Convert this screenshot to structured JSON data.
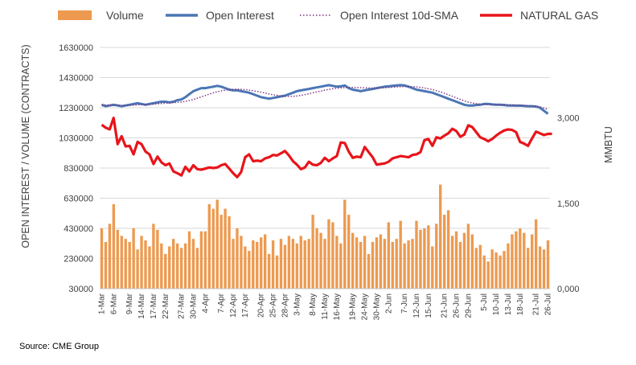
{
  "chart_data": {
    "type": "bar+line",
    "legend": {
      "placement": "top",
      "items": [
        {
          "label": "Volume",
          "kind": "bar",
          "color": "#ED9A50"
        },
        {
          "label": "Open Interest",
          "kind": "line",
          "color": "#4A76B5"
        },
        {
          "label": "Open Interest 10d-SMA",
          "kind": "dotted-line",
          "color": "#7B2F7E"
        },
        {
          "label": "NATURAL GAS",
          "kind": "line",
          "color": "#E8141A"
        }
      ]
    },
    "ylabel_left": "OPEN INTEREST / VOLUME (CONTRACTS)",
    "ylabel_right": "MMBTU",
    "yticks_left": [
      "1630000",
      "1430000",
      "1230000",
      "1030000",
      "830000",
      "630000",
      "430000",
      "230000",
      "30000"
    ],
    "ylim_left": [
      30000,
      1630000
    ],
    "yticks_right": [
      "3,000",
      "1,500",
      "0,000"
    ],
    "ylim_right": [
      0,
      4240
    ],
    "xtick_labels": [
      "1-Mar",
      "6-Mar",
      "9-Mar",
      "14-Mar",
      "17-Mar",
      "22-Mar",
      "27-Mar",
      "30-Mar",
      "4-Apr",
      "7-Apr",
      "12-Apr",
      "17-Apr",
      "20-Apr",
      "25-Apr",
      "28-Apr",
      "3-May",
      "8-May",
      "11-May",
      "16-May",
      "19-May",
      "24-May",
      "30-May",
      "2-Jun",
      "7-Jun",
      "12-Jun",
      "15-Jun",
      "21-Jun",
      "26-Jun",
      "29-Jun",
      "5-Jul",
      "10-Jul",
      "13-Jul",
      "18-Jul",
      "21-Jul",
      "26-Jul"
    ],
    "series": [
      {
        "name": "Volume",
        "values": [
          430000,
          340000,
          460000,
          590000,
          420000,
          380000,
          360000,
          340000,
          430000,
          290000,
          380000,
          350000,
          310000,
          460000,
          420000,
          330000,
          260000,
          310000,
          360000,
          330000,
          300000,
          330000,
          410000,
          360000,
          300000,
          410000,
          410000,
          590000,
          560000,
          620000,
          520000,
          560000,
          510000,
          360000,
          430000,
          380000,
          310000,
          280000,
          350000,
          340000,
          370000,
          390000,
          260000,
          350000,
          250000,
          360000,
          320000,
          380000,
          360000,
          330000,
          380000,
          350000,
          360000,
          520000,
          430000,
          400000,
          360000,
          490000,
          470000,
          380000,
          330000,
          620000,
          520000,
          400000,
          370000,
          340000,
          380000,
          260000,
          340000,
          370000,
          390000,
          360000,
          470000,
          340000,
          360000,
          480000,
          330000,
          350000,
          360000,
          480000,
          420000,
          430000,
          450000,
          310000,
          460000,
          720000,
          520000,
          550000,
          380000,
          410000,
          340000,
          400000,
          460000,
          390000,
          300000,
          320000,
          250000,
          210000,
          290000,
          270000,
          250000,
          280000,
          330000,
          390000,
          410000,
          430000,
          400000,
          300000,
          390000,
          490000,
          310000,
          290000,
          350000
        ]
      },
      {
        "name": "Open Interest",
        "values": [
          1250000,
          1240000,
          1245000,
          1250000,
          1245000,
          1240000,
          1245000,
          1250000,
          1255000,
          1260000,
          1255000,
          1250000,
          1255000,
          1260000,
          1265000,
          1270000,
          1270000,
          1265000,
          1270000,
          1280000,
          1285000,
          1300000,
          1320000,
          1340000,
          1350000,
          1360000,
          1360000,
          1365000,
          1370000,
          1375000,
          1370000,
          1360000,
          1350000,
          1345000,
          1345000,
          1340000,
          1335000,
          1330000,
          1320000,
          1310000,
          1300000,
          1295000,
          1290000,
          1295000,
          1300000,
          1305000,
          1310000,
          1320000,
          1330000,
          1340000,
          1345000,
          1350000,
          1355000,
          1360000,
          1365000,
          1370000,
          1375000,
          1380000,
          1375000,
          1370000,
          1372000,
          1378000,
          1360000,
          1350000,
          1345000,
          1340000,
          1345000,
          1350000,
          1355000,
          1360000,
          1365000,
          1370000,
          1372000,
          1375000,
          1378000,
          1380000,
          1378000,
          1370000,
          1360000,
          1350000,
          1345000,
          1340000,
          1335000,
          1330000,
          1320000,
          1310000,
          1300000,
          1290000,
          1280000,
          1270000,
          1260000,
          1250000,
          1245000,
          1245000,
          1248000,
          1250000,
          1255000,
          1255000,
          1252000,
          1250000,
          1250000,
          1248000,
          1245000,
          1245000,
          1244000,
          1244000,
          1242000,
          1240000,
          1240000,
          1238000,
          1230000,
          1210000,
          1190000
        ]
      },
      {
        "name": "Open Interest 10d-SMA",
        "values": [
          1250000,
          1248000,
          1246000,
          1246000,
          1246000,
          1245000,
          1245000,
          1246000,
          1247000,
          1249000,
          1250000,
          1251000,
          1252000,
          1254000,
          1256000,
          1258000,
          1260000,
          1262000,
          1264000,
          1266000,
          1268000,
          1272000,
          1278000,
          1285000,
          1293000,
          1302000,
          1311000,
          1320000,
          1328000,
          1336000,
          1342000,
          1347000,
          1350000,
          1352000,
          1353000,
          1352000,
          1350000,
          1347000,
          1343000,
          1338000,
          1333000,
          1327000,
          1321000,
          1316000,
          1312000,
          1308000,
          1306000,
          1305000,
          1306000,
          1308000,
          1312000,
          1317000,
          1323000,
          1329000,
          1335000,
          1341000,
          1347000,
          1352000,
          1356000,
          1359000,
          1362000,
          1364000,
          1365000,
          1365000,
          1364000,
          1363000,
          1362000,
          1361000,
          1360000,
          1360000,
          1361000,
          1362000,
          1364000,
          1366000,
          1368000,
          1370000,
          1371000,
          1371000,
          1370000,
          1368000,
          1365000,
          1361000,
          1356000,
          1350000,
          1343000,
          1335000,
          1326000,
          1316000,
          1306000,
          1295000,
          1285000,
          1276000,
          1268000,
          1262000,
          1257000,
          1254000,
          1252000,
          1251000,
          1250000,
          1250000,
          1250000,
          1250000,
          1249000,
          1248000,
          1247000,
          1246000,
          1245000,
          1244000,
          1242000,
          1240000,
          1236000,
          1228000,
          1218000
        ]
      },
      {
        "name": "NATURAL GAS",
        "values": [
          2880,
          2830,
          2800,
          3000,
          2540,
          2680,
          2500,
          2510,
          2360,
          2580,
          2540,
          2410,
          2360,
          2190,
          2320,
          2220,
          2170,
          2200,
          2060,
          2030,
          1990,
          2140,
          2060,
          2170,
          2100,
          2090,
          2110,
          2130,
          2120,
          2130,
          2170,
          2190,
          2110,
          2030,
          1960,
          2050,
          2310,
          2360,
          2240,
          2250,
          2240,
          2290,
          2310,
          2350,
          2340,
          2380,
          2420,
          2340,
          2240,
          2180,
          2100,
          2130,
          2230,
          2180,
          2170,
          2210,
          2300,
          2240,
          2290,
          2330,
          2570,
          2560,
          2410,
          2300,
          2320,
          2310,
          2490,
          2400,
          2310,
          2180,
          2190,
          2200,
          2230,
          2290,
          2310,
          2330,
          2320,
          2310,
          2350,
          2360,
          2400,
          2610,
          2630,
          2510,
          2660,
          2640,
          2690,
          2730,
          2810,
          2770,
          2670,
          2710,
          2870,
          2840,
          2750,
          2660,
          2630,
          2590,
          2630,
          2690,
          2740,
          2780,
          2800,
          2790,
          2750,
          2580,
          2550,
          2510,
          2640,
          2760,
          2730,
          2700,
          2720,
          2720
        ]
      }
    ]
  },
  "source": "Source: CME Group"
}
